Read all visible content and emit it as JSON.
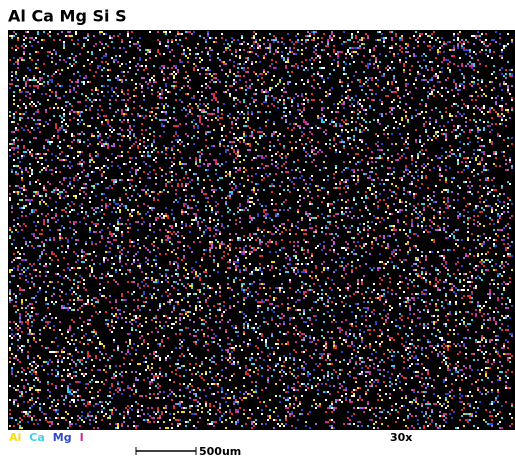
{
  "title": "Al Ca Mg Si S",
  "legend": [
    {
      "label": "Al",
      "color": "#f2dd1c"
    },
    {
      "label": "Ca",
      "color": "#3fd0e6"
    },
    {
      "label": "Mg",
      "color": "#3048c8"
    },
    {
      "label": "I",
      "color": "#c8308a"
    }
  ],
  "scale_bar": "500um",
  "magnification": "30x"
}
